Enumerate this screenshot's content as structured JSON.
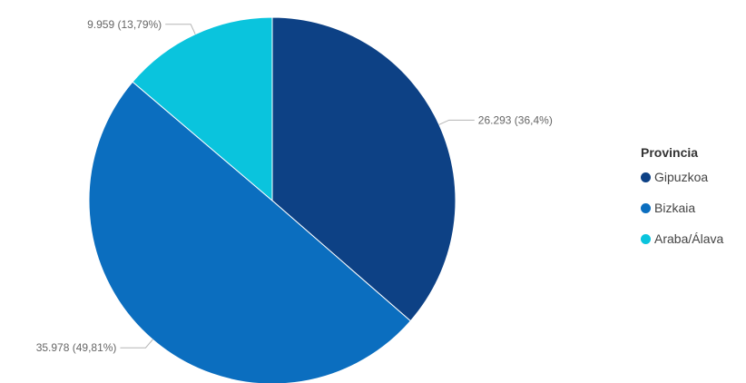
{
  "chart_data": {
    "type": "pie",
    "legend_title": "Provincia",
    "legend_position": "right",
    "slices": [
      {
        "name": "Gipuzkoa",
        "value": 26293,
        "label": "26.293 (36,4%)",
        "color": "#0d4185"
      },
      {
        "name": "Bizkaia",
        "value": 35978,
        "label": "35.978 (49,81%)",
        "color": "#0b6ebf"
      },
      {
        "name": "Araba/Álava",
        "value": 9959,
        "label": "9.959 (13,79%)",
        "color": "#0ac4dd"
      }
    ]
  }
}
